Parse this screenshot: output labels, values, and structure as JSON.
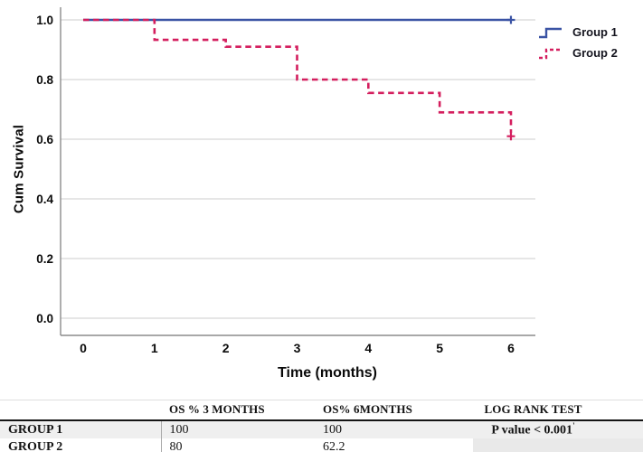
{
  "chart_data": {
    "type": "line",
    "subtype": "kaplan-meier-step",
    "title": "",
    "xlabel": "Time (months)",
    "ylabel": "Cum Survival",
    "xlim": [
      0,
      6
    ],
    "ylim": [
      0.0,
      1.0
    ],
    "x_ticks": [
      "0",
      "1",
      "2",
      "3",
      "4",
      "5",
      "6"
    ],
    "y_ticks": [
      "0.0",
      "0.2",
      "0.4",
      "0.6",
      "0.8",
      "1.0"
    ],
    "grid": true,
    "legend_position": "upper right",
    "colors": {
      "grid": "#cccccc",
      "axis": "#8c8c8c",
      "tick_text": "#0b0b0b"
    },
    "series": [
      {
        "name": "Group 1",
        "color": "#3a53a4",
        "style": "solid",
        "steps": [
          {
            "t": 0,
            "s": 1.0
          },
          {
            "t": 6,
            "s": 1.0
          }
        ],
        "censored": [
          {
            "t": 6,
            "s": 1.0
          }
        ]
      },
      {
        "name": "Group 2",
        "color": "#d41e5e",
        "style": "dashed",
        "steps": [
          {
            "t": 0,
            "s": 1.0
          },
          {
            "t": 1,
            "s": 0.933
          },
          {
            "t": 2,
            "s": 0.91
          },
          {
            "t": 3,
            "s": 0.8
          },
          {
            "t": 4,
            "s": 0.755
          },
          {
            "t": 5,
            "s": 0.69
          },
          {
            "t": 6,
            "s": 0.622
          }
        ],
        "censored": [
          {
            "t": 6,
            "s": 0.61
          }
        ]
      }
    ]
  },
  "table": {
    "headers": {
      "col1": "",
      "col2": "OS % 3 MONTHS",
      "col3": "OS% 6MONTHS",
      "col4": "LOG RANK TEST"
    },
    "rows": [
      {
        "label": "GROUP 1",
        "os3": "100",
        "os6": "100",
        "logrank": "P value < 0.001",
        "logrank_marker": "'"
      },
      {
        "label": "GROUP 2",
        "os3": "80",
        "os6": "62.2",
        "logrank": "",
        "logrank_marker": ""
      }
    ]
  }
}
